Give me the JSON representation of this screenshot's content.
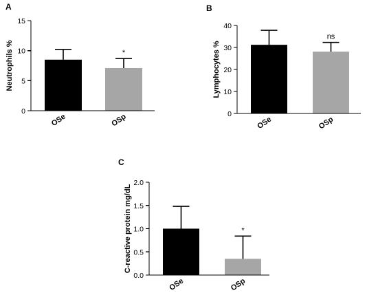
{
  "chart_data": [
    {
      "type": "bar",
      "panel": "A",
      "ylabel": "Neutrophils %",
      "ylim": [
        0,
        15
      ],
      "yticks": [
        "0",
        "5",
        "10",
        "15"
      ],
      "categories": [
        "OSe",
        "OSp"
      ],
      "values": [
        8.5,
        7.1
      ],
      "errors": [
        1.7,
        1.6
      ],
      "colors": [
        "#000000",
        "#a6a6a6"
      ],
      "significance": [
        "",
        "*"
      ]
    },
    {
      "type": "bar",
      "panel": "B",
      "ylabel": "Lymphocytes %",
      "ylim": [
        0,
        40
      ],
      "yticks": [
        "0",
        "10",
        "20",
        "30",
        "40"
      ],
      "categories": [
        "OSe",
        "OSp"
      ],
      "values": [
        31.2,
        28.1
      ],
      "errors": [
        6.6,
        4.2
      ],
      "colors": [
        "#000000",
        "#a6a6a6"
      ],
      "significance": [
        "",
        "ns"
      ]
    },
    {
      "type": "bar",
      "panel": "C",
      "ylabel": "C-reactive protein mg/dL",
      "ylim": [
        0,
        2.0
      ],
      "yticks": [
        "0.0",
        "0.5",
        "1.0",
        "1.5",
        "2.0"
      ],
      "categories": [
        "OSe",
        "OSp"
      ],
      "values": [
        1.0,
        0.35
      ],
      "errors": [
        0.48,
        0.49
      ],
      "colors": [
        "#000000",
        "#a6a6a6"
      ],
      "significance": [
        "",
        "*"
      ]
    }
  ]
}
